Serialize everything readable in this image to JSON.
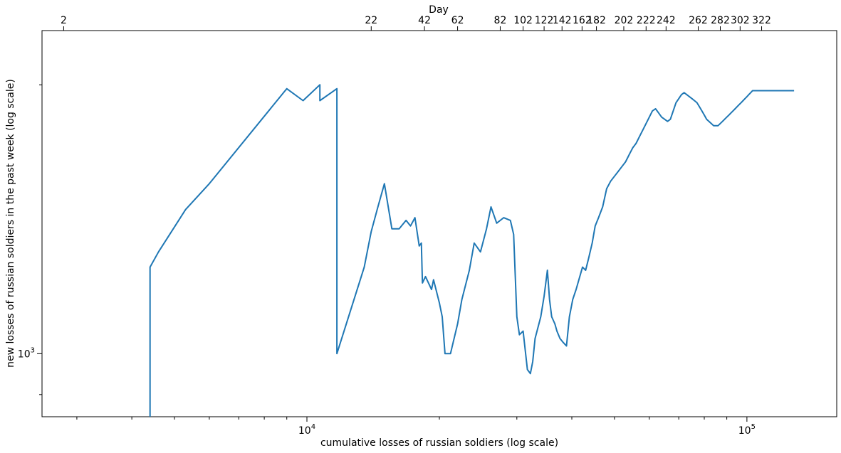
{
  "chart_data": {
    "type": "line",
    "title": "",
    "xlabel": "cumulative losses of russian soldiers (log scale)",
    "ylabel": "new losses of russian soldiers in the past week (log scale)",
    "x_scale": "log",
    "y_scale": "log",
    "xlim": [
      2500,
      160000
    ],
    "ylim": [
      850,
      2300
    ],
    "x_ticks": [
      {
        "value": 10000,
        "base": "10",
        "exp": "4"
      },
      {
        "value": 100000,
        "base": "10",
        "exp": "5"
      }
    ],
    "y_ticks": [
      {
        "value": 1000,
        "base": "10",
        "exp": "3"
      }
    ],
    "top_axis": {
      "label": "Day",
      "ticks": [
        {
          "label": "2",
          "x": 2800
        },
        {
          "label": "22",
          "x": 14000
        },
        {
          "label": "42",
          "x": 18500
        },
        {
          "label": "62",
          "x": 22000
        },
        {
          "label": "82",
          "x": 27500
        },
        {
          "label": "102",
          "x": 31000
        },
        {
          "label": "122",
          "x": 34600
        },
        {
          "label": "142",
          "x": 38000
        },
        {
          "label": "162",
          "x": 42200
        },
        {
          "label": "182",
          "x": 45500
        },
        {
          "label": "202",
          "x": 52500
        },
        {
          "label": "222",
          "x": 59000
        },
        {
          "label": "242",
          "x": 65500
        },
        {
          "label": "262",
          "x": 77500
        },
        {
          "label": "282",
          "x": 87000
        },
        {
          "label": "302",
          "x": 96500
        },
        {
          "label": "322",
          "x": 108000
        }
      ]
    },
    "series": [
      {
        "name": "",
        "color": "#1f77b4",
        "points": [
          [
            4400,
            800
          ],
          [
            4400,
            1250
          ],
          [
            4600,
            1300
          ],
          [
            5300,
            1450
          ],
          [
            6000,
            1550
          ],
          [
            9000,
            1980
          ],
          [
            9800,
            1920
          ],
          [
            10700,
            2000
          ],
          [
            10700,
            1920
          ],
          [
            11700,
            1980
          ],
          [
            11700,
            1000
          ],
          [
            13500,
            1250
          ],
          [
            14000,
            1370
          ],
          [
            14500,
            1460
          ],
          [
            15000,
            1550
          ],
          [
            15600,
            1380
          ],
          [
            16200,
            1380
          ],
          [
            16800,
            1410
          ],
          [
            17200,
            1390
          ],
          [
            17600,
            1420
          ],
          [
            18000,
            1320
          ],
          [
            18200,
            1330
          ],
          [
            18300,
            1200
          ],
          [
            18600,
            1220
          ],
          [
            19200,
            1180
          ],
          [
            19400,
            1210
          ],
          [
            20000,
            1140
          ],
          [
            20300,
            1100
          ],
          [
            20600,
            1000
          ],
          [
            21200,
            1000
          ],
          [
            22000,
            1080
          ],
          [
            22500,
            1150
          ],
          [
            23400,
            1240
          ],
          [
            24000,
            1330
          ],
          [
            24800,
            1300
          ],
          [
            25600,
            1380
          ],
          [
            26200,
            1460
          ],
          [
            27000,
            1400
          ],
          [
            28000,
            1420
          ],
          [
            29000,
            1410
          ],
          [
            29500,
            1360
          ],
          [
            30000,
            1100
          ],
          [
            30400,
            1050
          ],
          [
            31000,
            1060
          ],
          [
            31700,
            960
          ],
          [
            32200,
            950
          ],
          [
            32600,
            980
          ],
          [
            33000,
            1040
          ],
          [
            34000,
            1100
          ],
          [
            34600,
            1160
          ],
          [
            35200,
            1240
          ],
          [
            35600,
            1150
          ],
          [
            36000,
            1100
          ],
          [
            36600,
            1080
          ],
          [
            37000,
            1060
          ],
          [
            37600,
            1040
          ],
          [
            38200,
            1030
          ],
          [
            38900,
            1020
          ],
          [
            39500,
            1100
          ],
          [
            40200,
            1150
          ],
          [
            40900,
            1180
          ],
          [
            41700,
            1220
          ],
          [
            42300,
            1250
          ],
          [
            43000,
            1240
          ],
          [
            43700,
            1280
          ],
          [
            44500,
            1330
          ],
          [
            45200,
            1390
          ],
          [
            46000,
            1420
          ],
          [
            47000,
            1460
          ],
          [
            48000,
            1530
          ],
          [
            49000,
            1560
          ],
          [
            50000,
            1580
          ],
          [
            51000,
            1600
          ],
          [
            52000,
            1620
          ],
          [
            53000,
            1640
          ],
          [
            54000,
            1670
          ],
          [
            55000,
            1700
          ],
          [
            56000,
            1720
          ],
          [
            57000,
            1750
          ],
          [
            58000,
            1780
          ],
          [
            59000,
            1810
          ],
          [
            60000,
            1840
          ],
          [
            61000,
            1870
          ],
          [
            62000,
            1880
          ],
          [
            63000,
            1860
          ],
          [
            64000,
            1840
          ],
          [
            65000,
            1830
          ],
          [
            66000,
            1820
          ],
          [
            67000,
            1830
          ],
          [
            68000,
            1870
          ],
          [
            69000,
            1910
          ],
          [
            70000,
            1930
          ],
          [
            71000,
            1950
          ],
          [
            72000,
            1960
          ],
          [
            73000,
            1950
          ],
          [
            74000,
            1940
          ],
          [
            75000,
            1930
          ],
          [
            76000,
            1920
          ],
          [
            77000,
            1910
          ],
          [
            78000,
            1890
          ],
          [
            79000,
            1870
          ],
          [
            80000,
            1850
          ],
          [
            81000,
            1830
          ],
          [
            82000,
            1820
          ],
          [
            83000,
            1810
          ],
          [
            84000,
            1800
          ],
          [
            85000,
            1800
          ],
          [
            86000,
            1800
          ],
          [
            87000,
            1810
          ],
          [
            88000,
            1820
          ],
          [
            89000,
            1830
          ],
          [
            90000,
            1840
          ],
          [
            91000,
            1850
          ],
          [
            92000,
            1860
          ],
          [
            93000,
            1870
          ],
          [
            94000,
            1880
          ],
          [
            95000,
            1890
          ],
          [
            96000,
            1900
          ],
          [
            97000,
            1910
          ],
          [
            98000,
            1920
          ],
          [
            99000,
            1930
          ],
          [
            100000,
            1940
          ],
          [
            101000,
            1950
          ],
          [
            102000,
            1960
          ],
          [
            103000,
            1970
          ],
          [
            104000,
            1970
          ],
          [
            105000,
            1970
          ],
          [
            106000,
            1970
          ],
          [
            107000,
            1970
          ],
          [
            108000,
            1970
          ],
          [
            109000,
            1970
          ],
          [
            110000,
            1970
          ],
          [
            111000,
            1970
          ],
          [
            112000,
            1970
          ],
          [
            113000,
            1970
          ],
          [
            114000,
            1970
          ],
          [
            115000,
            1970
          ],
          [
            116000,
            1970
          ],
          [
            117000,
            1970
          ],
          [
            118000,
            1970
          ],
          [
            119000,
            1970
          ],
          [
            120000,
            1970
          ],
          [
            121000,
            1970
          ],
          [
            122000,
            1970
          ],
          [
            123000,
            1970
          ],
          [
            124000,
            1970
          ],
          [
            125000,
            1970
          ],
          [
            126000,
            1970
          ],
          [
            127000,
            1970
          ],
          [
            128000,
            1970
          ]
        ]
      }
    ],
    "grid": false,
    "legend": "none"
  }
}
